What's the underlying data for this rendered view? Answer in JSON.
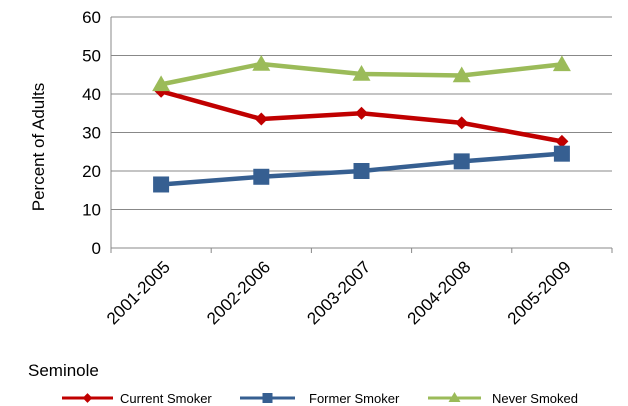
{
  "chart_data": {
    "type": "line",
    "title": "",
    "xlabel": "",
    "ylabel": "Percent of Adults",
    "group_label": "Seminole",
    "categories": [
      "2001-2005",
      "2002-2006",
      "2003-2007",
      "2004-2008",
      "2005-2009"
    ],
    "ylim": [
      0,
      60
    ],
    "yticks": [
      0,
      10,
      20,
      30,
      40,
      50,
      60
    ],
    "grid": "horizontal",
    "legend_position": "bottom",
    "series": [
      {
        "name": "Current Smoker",
        "color": "#c00000",
        "marker": "diamond",
        "values": [
          40.7,
          33.5,
          35.0,
          32.5,
          27.7
        ]
      },
      {
        "name": "Former Smoker",
        "color": "#365f91",
        "marker": "square",
        "values": [
          16.5,
          18.5,
          20.0,
          22.5,
          24.5
        ]
      },
      {
        "name": "Never Smoked",
        "color": "#9bbb59",
        "marker": "triangle",
        "values": [
          42.5,
          47.8,
          45.2,
          44.8,
          47.7
        ]
      }
    ]
  }
}
